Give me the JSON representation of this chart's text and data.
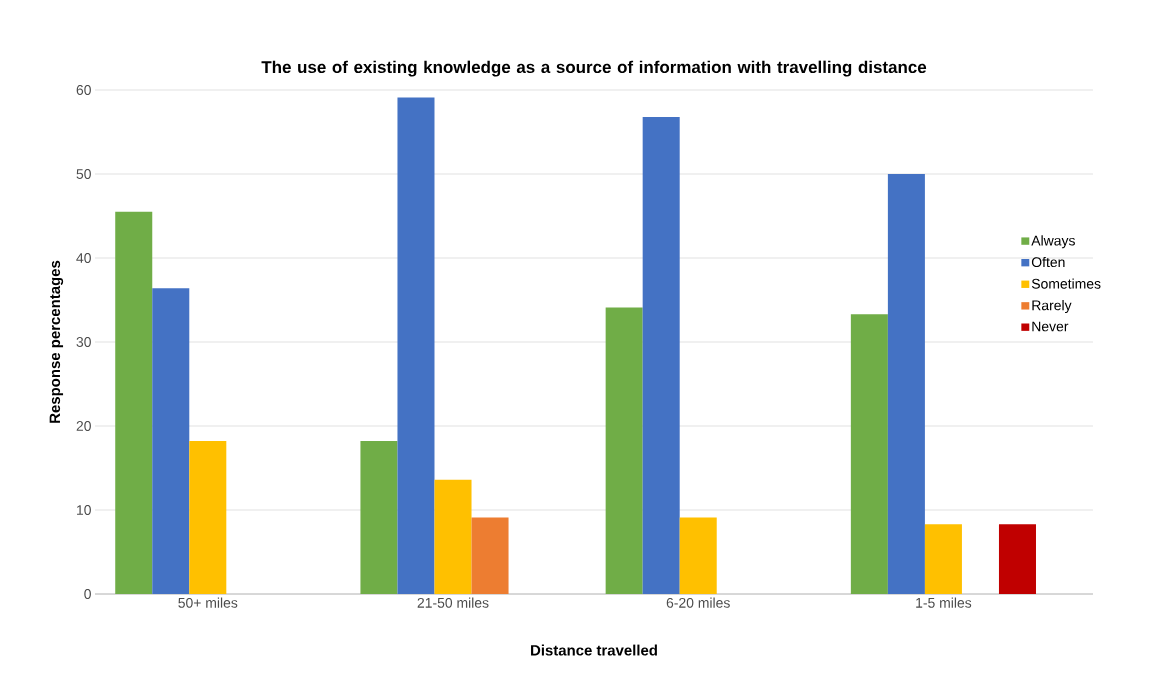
{
  "chart_data": {
    "type": "bar",
    "title": "The use of existing knowledge as a source of information with travelling distance",
    "xlabel": "Distance travelled",
    "ylabel": "Response percentages",
    "categories": [
      "50+ miles",
      "21-50 miles",
      "6-20 miles",
      "1-5 miles"
    ],
    "series": [
      {
        "name": "Always",
        "color": "#70ad47",
        "values": [
          45.5,
          18.2,
          34.1,
          33.3
        ]
      },
      {
        "name": "Often",
        "color": "#4472c4",
        "values": [
          36.4,
          59.1,
          56.8,
          50.0
        ]
      },
      {
        "name": "Sometimes",
        "color": "#ffc000",
        "values": [
          18.2,
          13.6,
          9.1,
          8.3
        ]
      },
      {
        "name": "Rarely",
        "color": "#ed7d31",
        "values": [
          0,
          9.1,
          0,
          0
        ]
      },
      {
        "name": "Never",
        "color": "#c00000",
        "values": [
          0,
          0,
          0,
          8.3
        ]
      }
    ],
    "ylim": [
      0,
      60
    ],
    "yticks": [
      0,
      10,
      20,
      30,
      40,
      50,
      60
    ],
    "grid": "y",
    "legend": "right"
  }
}
